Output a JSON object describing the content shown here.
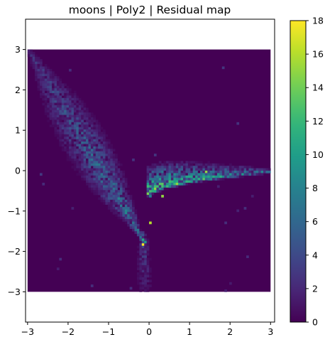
{
  "chart_data": {
    "type": "heatmap",
    "title": "moons | Poly2 | Residual map",
    "xlabel": "",
    "ylabel": "",
    "xlim": [
      -3.05,
      3.1
    ],
    "ylim": [
      -3.75,
      3.75
    ],
    "heatmap_extent": {
      "x": [
        -3,
        3
      ],
      "y": [
        -3,
        3
      ]
    },
    "background_value": 0,
    "x_ticks": [
      -3,
      -2,
      -1,
      0,
      1,
      2,
      3
    ],
    "x_tick_labels": [
      "−3",
      "−2",
      "−1",
      "0",
      "1",
      "2",
      "3"
    ],
    "y_ticks": [
      3,
      2,
      1,
      0,
      -1,
      -2,
      -3
    ],
    "y_tick_labels": [
      "3",
      "2",
      "1",
      "0",
      "−1",
      "−2",
      "−3"
    ],
    "grid": false,
    "colormap": "viridis",
    "colorbar": {
      "range": [
        0,
        18
      ],
      "ticks": [
        0,
        2,
        4,
        6,
        8,
        10,
        12,
        14,
        16,
        18
      ],
      "tick_labels": [
        "0",
        "2",
        "4",
        "6",
        "8",
        "10",
        "12",
        "14",
        "16",
        "18"
      ]
    },
    "structure": {
      "upper_left_arm": {
        "from": [
          -2.95,
          2.95
        ],
        "to": [
          -0.1,
          -1.8
        ],
        "peak_value": 8
      },
      "right_arm": {
        "from": [
          0.05,
          -0.6
        ],
        "to": [
          3.0,
          0.0
        ],
        "peak_value": 14
      },
      "lower_tail": {
        "from": [
          -0.15,
          -1.6
        ],
        "to": [
          -0.1,
          -2.95
        ],
        "peak_value": 6
      },
      "bright_spots": [
        {
          "x": -0.15,
          "y": -1.8,
          "value": 18
        },
        {
          "x": 0.0,
          "y": -1.3,
          "value": 16
        },
        {
          "x": 0.3,
          "y": -0.6,
          "value": 15
        },
        {
          "x": 1.4,
          "y": 0.0,
          "value": 15
        }
      ]
    }
  }
}
